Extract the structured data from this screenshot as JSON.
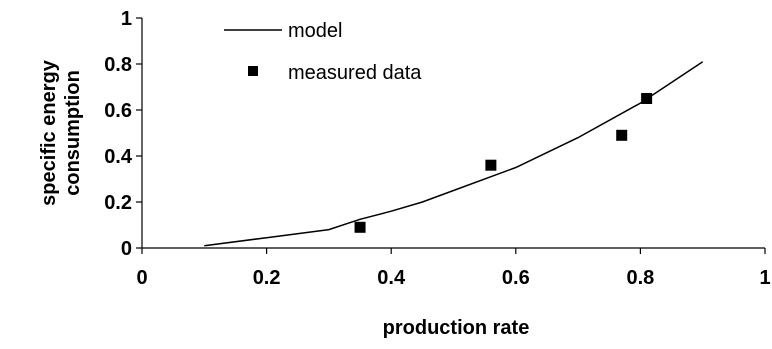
{
  "chart_data": {
    "type": "scatter",
    "title": "",
    "xlabel": "production rate",
    "ylabel_lines": [
      "specific energy",
      "consumption"
    ],
    "xlim": [
      0,
      1
    ],
    "ylim": [
      0,
      1
    ],
    "xticks": [
      "0",
      "0.2",
      "0.4",
      "0.6",
      "0.8",
      "1"
    ],
    "yticks": [
      "0",
      "0.2",
      "0.4",
      "0.6",
      "0.8",
      "1"
    ],
    "grid": false,
    "legend_position": "top-left",
    "series": [
      {
        "name": "model",
        "kind": "line",
        "color": "#000000",
        "x": [
          0.1,
          0.2,
          0.3,
          0.35,
          0.4,
          0.45,
          0.5,
          0.6,
          0.7,
          0.8,
          0.9
        ],
        "y": [
          0.01,
          0.045,
          0.08,
          0.125,
          0.16,
          0.2,
          0.25,
          0.35,
          0.48,
          0.63,
          0.81
        ]
      },
      {
        "name": "measured data",
        "kind": "scatter",
        "marker": "square",
        "color": "#000000",
        "x": [
          0.35,
          0.56,
          0.77,
          0.81
        ],
        "y": [
          0.09,
          0.36,
          0.49,
          0.65
        ]
      }
    ]
  }
}
